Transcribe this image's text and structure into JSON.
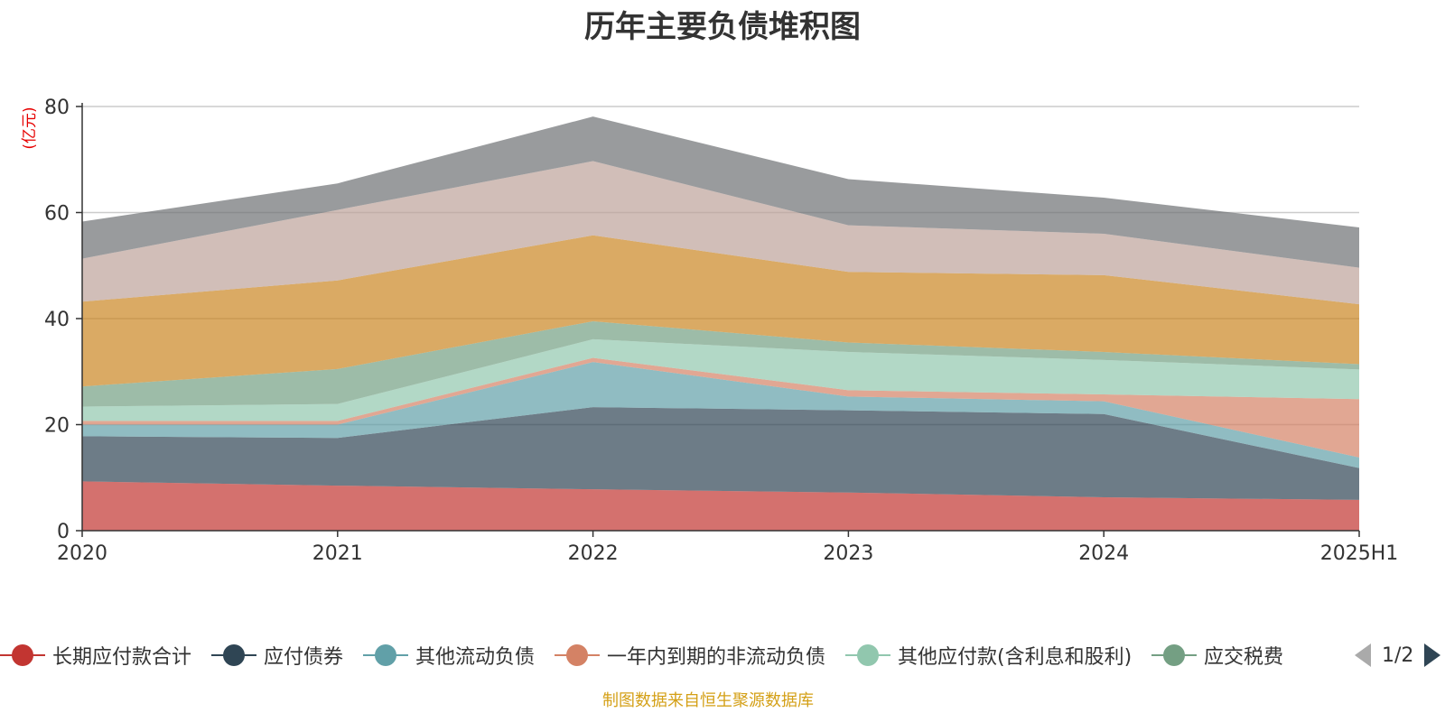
{
  "chart_data": {
    "type": "area",
    "stacked": true,
    "title": "历年主要负债堆积图",
    "ylabel": "(亿元)",
    "xlabel": "",
    "x": [
      "2020",
      "2021",
      "2022",
      "2023",
      "2024",
      "2025H1"
    ],
    "ylim": [
      0,
      80
    ],
    "yticks": [
      "0",
      "20",
      "40",
      "60",
      "80"
    ],
    "grid": true,
    "series": [
      {
        "name": "长期应付款合计",
        "color": "#c23531",
        "values": [
          9.3,
          8.5,
          7.8,
          7.2,
          6.3,
          5.8
        ]
      },
      {
        "name": "应付债券",
        "color": "#2f4554",
        "values": [
          8.5,
          9.0,
          15.5,
          15.5,
          15.7,
          6.0
        ]
      },
      {
        "name": "其他流动负债",
        "color": "#61a0a8",
        "values": [
          2.2,
          2.5,
          8.5,
          2.6,
          2.4,
          2.0
        ]
      },
      {
        "name": "一年内到期的非流动负债",
        "color": "#d48265",
        "values": [
          0.7,
          0.7,
          0.8,
          1.2,
          1.3,
          11.0
        ]
      },
      {
        "name": "其他应付款(含利息和股利)",
        "color": "#91c7ae",
        "values": [
          2.7,
          3.2,
          3.5,
          7.2,
          6.5,
          5.6
        ]
      },
      {
        "name": "应交税费",
        "color": "#749f83",
        "values": [
          3.8,
          6.6,
          3.4,
          1.8,
          1.5,
          1.0
        ]
      },
      {
        "name": "",
        "color": "#ca8622",
        "values": [
          16.0,
          16.7,
          16.2,
          13.3,
          14.5,
          11.3
        ]
      },
      {
        "name": "",
        "color": "#bda29a",
        "values": [
          8.1,
          13.3,
          14.0,
          8.8,
          7.8,
          6.9
        ]
      },
      {
        "name": "",
        "color": "#6e7074",
        "values": [
          7.0,
          5.0,
          8.4,
          8.7,
          6.8,
          7.6
        ]
      }
    ]
  },
  "legend_visible_count": 6,
  "pager": {
    "text": "1/2"
  },
  "source": "制图数据来自恒生聚源数据库"
}
